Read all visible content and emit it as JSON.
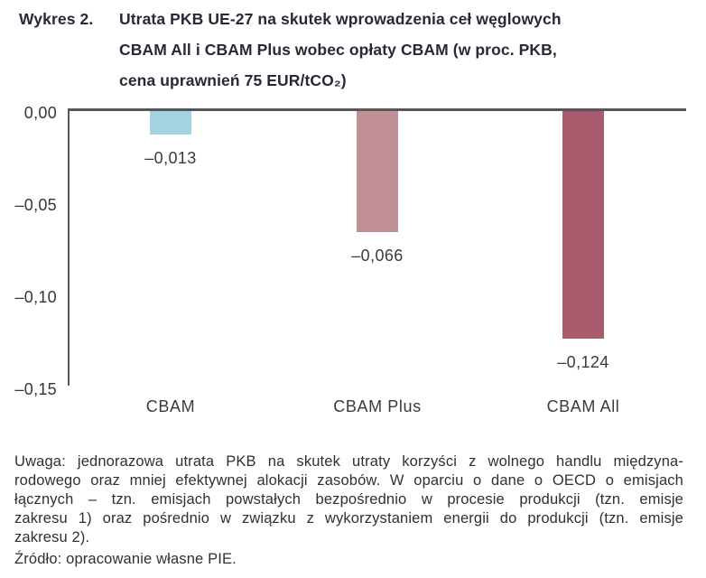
{
  "title": {
    "label": "Wykres 2.",
    "lines": [
      "Utrata PKB UE-27 na skutek wprowadzenia ceł węglowych",
      "CBAM All i CBAM Plus wobec opłaty CBAM (w proc. PKB,",
      "cena uprawnień 75 EUR/tCO₂)"
    ]
  },
  "chart_data": {
    "type": "bar",
    "title": "Utrata PKB UE-27 na skutek wprowadzenia ceł węglowych CBAM All i CBAM Plus wobec opłaty CBAM (w proc. PKB, cena uprawnień 75 EUR/tCO₂)",
    "categories": [
      "CBAM",
      "CBAM Plus",
      "CBAM All"
    ],
    "values": [
      -0.013,
      -0.066,
      -0.124
    ],
    "value_labels": [
      "–0,013",
      "–0,066",
      "–0,124"
    ],
    "bar_colors": [
      "#a3d3de",
      "#c19094",
      "#ab5b6e"
    ],
    "xlabel": "",
    "ylabel": "",
    "ylim": [
      -0.15,
      0
    ],
    "yticks": [
      0,
      -0.05,
      -0.1,
      -0.15
    ],
    "ytick_labels": [
      "0,00",
      "–0,05",
      "–0,10",
      "–0,15"
    ],
    "grid": false,
    "legend": false,
    "axis_color": "#55565b"
  },
  "note": {
    "lines": [
      "Uwaga: jednorazowa utrata PKB na skutek utraty korzyści z wolnego handlu międzyna-",
      "rodowego oraz mniej efektywnej alokacji zasobów. W oparciu o dane o OECD o emisjach",
      "łącznych – tzn. emisjach powstałych bezpośrednio w procesie produkcji (tzn. emisje",
      "zakresu 1) oraz pośrednio w związku z wykorzystaniem energii do produkcji (tzn. emisje",
      "zakresu 2)."
    ]
  },
  "source": {
    "text": "Źródło: opracowanie własne PIE."
  }
}
